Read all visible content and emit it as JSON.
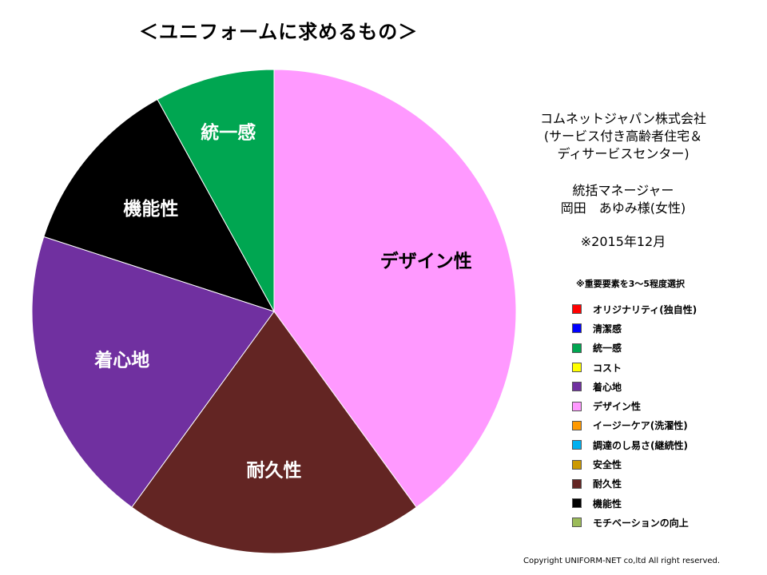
{
  "title": "＜ユニフォームに求めるもの＞",
  "info": {
    "company_lines": [
      "コムネットジャパン株式会社",
      "(サービス付き高齢者住宅＆",
      "ディサービスセンター)"
    ],
    "person_lines": [
      "統括マネージャー",
      "岡田　あゆみ様(女性)"
    ],
    "date": "※2015年12月"
  },
  "legend_note": "※重要要素を3～5程度選択",
  "legend": [
    {
      "label": "オリジナリティ(独自性)",
      "color": "#ff0000"
    },
    {
      "label": "清潔感",
      "color": "#0000ff"
    },
    {
      "label": "統一感",
      "color": "#00a651"
    },
    {
      "label": "コスト",
      "color": "#ffff00"
    },
    {
      "label": "着心地",
      "color": "#7030a0"
    },
    {
      "label": "デザイン性",
      "color": "#ff99ff"
    },
    {
      "label": "イージーケア(洗濯性)",
      "color": "#ff9900"
    },
    {
      "label": "調達のし易さ(継続性)",
      "color": "#00b0f0"
    },
    {
      "label": "安全性",
      "color": "#cc9900"
    },
    {
      "label": "耐久性",
      "color": "#632523"
    },
    {
      "label": "機能性",
      "color": "#000000"
    },
    {
      "label": "モチベーションの向上",
      "color": "#9bbb59"
    }
  ],
  "copyright": "Copyright UNIFORM-NET co,ltd All right reserved.",
  "chart_data": {
    "type": "pie",
    "title": "＜ユニフォームに求めるもの＞",
    "slices": [
      {
        "label": "デザイン性",
        "value": 40,
        "color": "#ff99ff",
        "label_color": "#000000"
      },
      {
        "label": "耐久性",
        "value": 20,
        "color": "#632523",
        "label_color": "#ffffff"
      },
      {
        "label": "着心地",
        "value": 20,
        "color": "#7030a0",
        "label_color": "#ffffff"
      },
      {
        "label": "機能性",
        "value": 12,
        "color": "#000000",
        "label_color": "#ffffff"
      },
      {
        "label": "統一感",
        "value": 8,
        "color": "#00a651",
        "label_color": "#ffffff"
      }
    ],
    "start": "12 o'clock",
    "direction": "clockwise"
  }
}
